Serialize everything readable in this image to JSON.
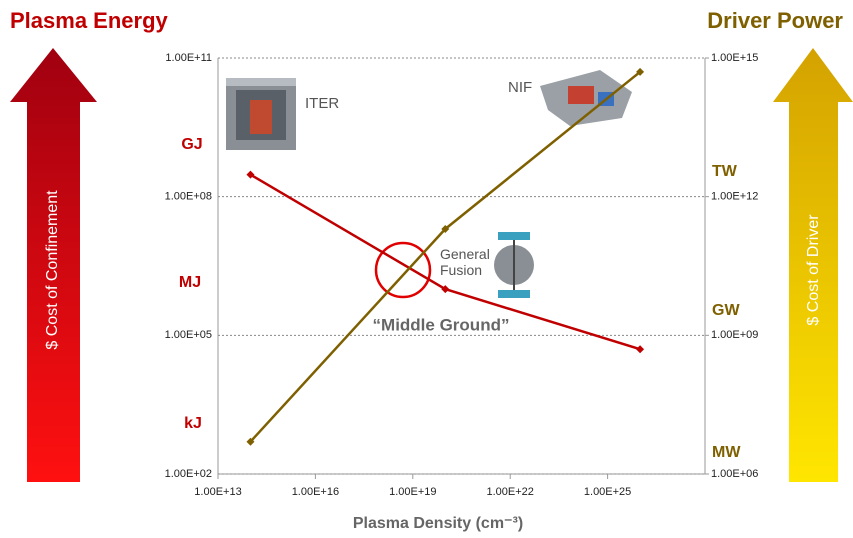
{
  "chart_data": {
    "type": "line",
    "left_title": "Plasma Energy",
    "right_title": "Driver Power",
    "left_arrow_label": "$ Cost of Confinement",
    "right_arrow_label": "$ Cost of Driver",
    "x_label": "Plasma Density (cm⁻³)",
    "left_units": [
      "GJ",
      "MJ",
      "kJ"
    ],
    "right_units": [
      "TW",
      "GW",
      "MW"
    ],
    "annotations": {
      "iter": "ITER",
      "nif": "NIF",
      "general_fusion": "General Fusion",
      "middle_ground": "“Middle Ground”"
    },
    "x": [
      100000000000000.0,
      1e+20,
      1e+26
    ],
    "series": [
      {
        "color": "#c00000",
        "values": [
          300000000.0,
          1000000.0,
          50000.0
        ]
      },
      {
        "color": "#7f6000",
        "axis": "y2",
        "values": [
          5000000.0,
          200000000000.0,
          500000000000000.0
        ]
      }
    ],
    "xscale": "log",
    "yscale": "log",
    "y2scale": "log",
    "xlim": [
      10000000000000.0,
      1e+28
    ],
    "ylim": [
      100,
      100000000000.0
    ],
    "y2lim": [
      1000000.0,
      1000000000000000.0
    ],
    "xticks": [
      {
        "value": 10000000000000.0,
        "label": "1.00E+13"
      },
      {
        "value": 1e+16,
        "label": "1.00E+16"
      },
      {
        "value": 1e+19,
        "label": "1.00E+19"
      },
      {
        "value": 1e+22,
        "label": "1.00E+22"
      },
      {
        "value": 1e+25,
        "label": "1.00E+25"
      }
    ],
    "yticks": [
      {
        "value": 100,
        "label": "1.00E+02"
      },
      {
        "value": 100000.0,
        "label": "1.00E+05"
      },
      {
        "value": 100000000.0,
        "label": "1.00E+08"
      },
      {
        "value": 100000000000.0,
        "label": "1.00E+11"
      }
    ],
    "y2ticks": [
      {
        "value": 1000000.0,
        "label": "1.00E+06"
      },
      {
        "value": 1000000000.0,
        "label": "1.00E+09"
      },
      {
        "value": 1000000000000.0,
        "label": "1.00E+12"
      },
      {
        "value": 1000000000000000.0,
        "label": "1.00E+15"
      }
    ],
    "grid": true
  }
}
